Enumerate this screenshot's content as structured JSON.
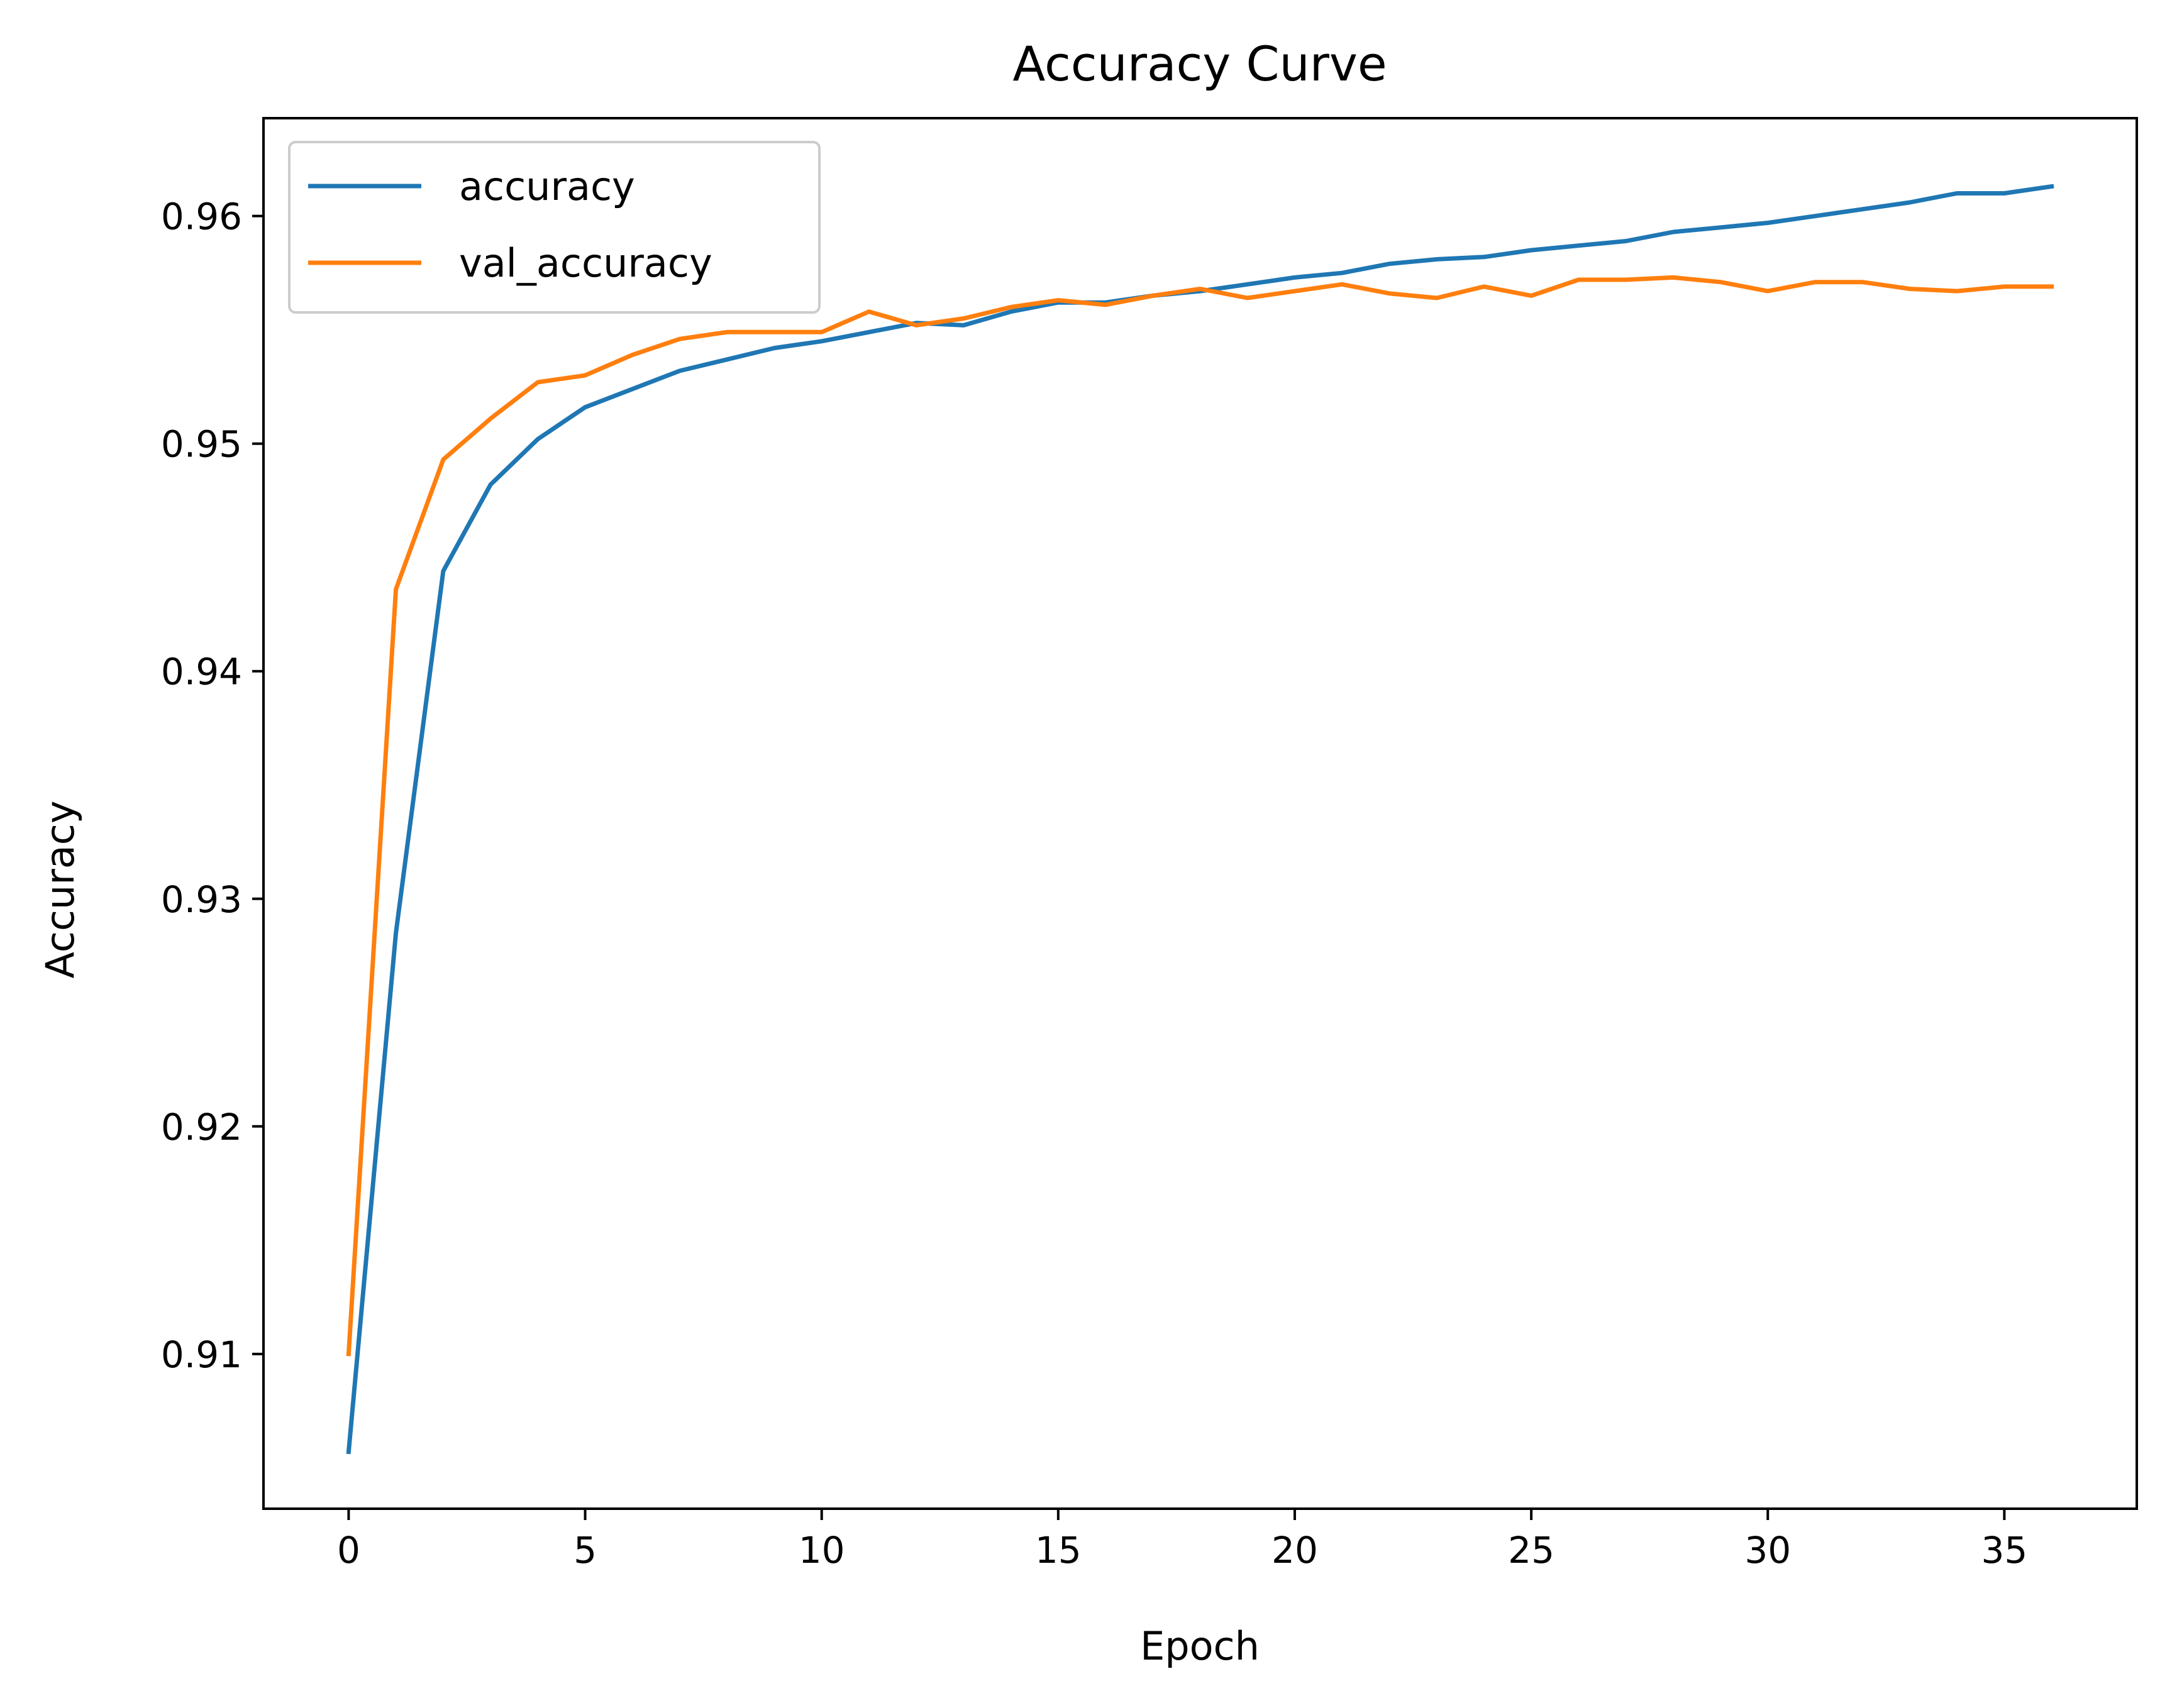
{
  "chart_data": {
    "type": "line",
    "title": "Accuracy Curve",
    "xlabel": "Epoch",
    "ylabel": "Accuracy",
    "xlim": [
      -1.8,
      37.8
    ],
    "ylim": [
      0.9032,
      0.9643
    ],
    "xticks": [
      0,
      5,
      10,
      15,
      20,
      25,
      30,
      35
    ],
    "yticks": [
      0.91,
      0.92,
      0.93,
      0.94,
      0.95,
      0.96
    ],
    "grid": false,
    "legend_position": "top-left",
    "x": [
      0,
      1,
      2,
      3,
      4,
      5,
      6,
      7,
      8,
      9,
      10,
      11,
      12,
      13,
      14,
      15,
      16,
      17,
      18,
      19,
      20,
      21,
      22,
      23,
      24,
      25,
      26,
      27,
      28,
      29,
      30,
      31,
      32,
      33,
      34,
      35,
      36
    ],
    "series": [
      {
        "name": "accuracy",
        "color": "#1f77b4",
        "values": [
          0.9057,
          0.9285,
          0.9444,
          0.9482,
          0.9502,
          0.9516,
          0.9524,
          0.9532,
          0.9537,
          0.9542,
          0.9545,
          0.9549,
          0.9553,
          0.9552,
          0.9558,
          0.9562,
          0.9562,
          0.9565,
          0.9567,
          0.957,
          0.9573,
          0.9575,
          0.9579,
          0.9581,
          0.9582,
          0.9585,
          0.9587,
          0.9589,
          0.9593,
          0.9595,
          0.9597,
          0.96,
          0.9603,
          0.9606,
          0.961,
          0.961,
          0.9613
        ]
      },
      {
        "name": "val_accuracy",
        "color": "#ff7f0e",
        "values": [
          0.91,
          0.9436,
          0.9493,
          0.9511,
          0.9527,
          0.953,
          0.9539,
          0.9546,
          0.9549,
          0.9549,
          0.9549,
          0.9558,
          0.9552,
          0.9555,
          0.956,
          0.9563,
          0.9561,
          0.9565,
          0.9568,
          0.9564,
          0.9567,
          0.957,
          0.9566,
          0.9564,
          0.9569,
          0.9565,
          0.9572,
          0.9572,
          0.9573,
          0.9571,
          0.9567,
          0.9571,
          0.9571,
          0.9568,
          0.9567,
          0.9569,
          0.9569
        ]
      }
    ]
  }
}
